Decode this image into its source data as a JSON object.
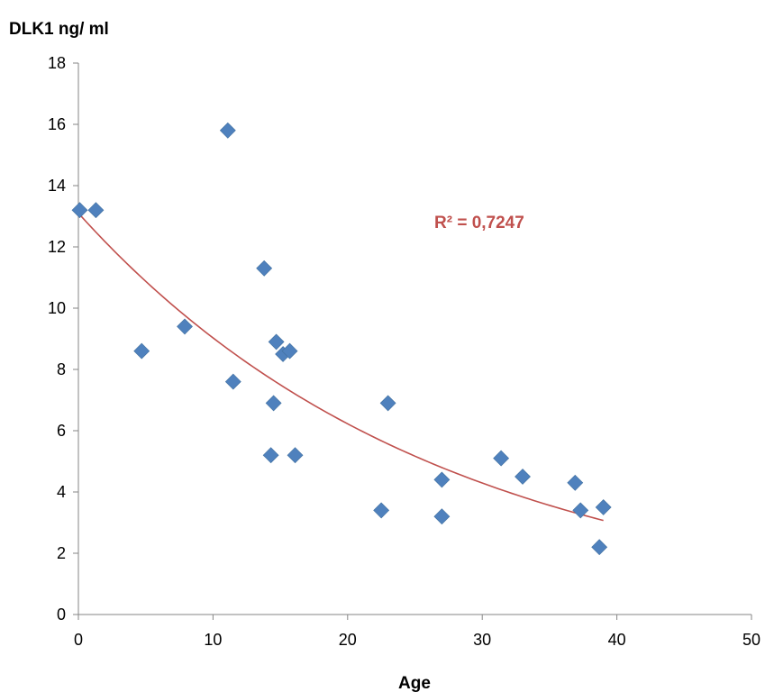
{
  "chart_data": {
    "type": "scatter",
    "title": "",
    "ylabel": "DLK1 ng/ ml",
    "xlabel": "Age",
    "xlim": [
      0,
      50
    ],
    "ylim": [
      0,
      18
    ],
    "x_ticks": [
      0,
      10,
      20,
      30,
      40,
      50
    ],
    "y_ticks": [
      0,
      2,
      4,
      6,
      8,
      10,
      12,
      14,
      16,
      18
    ],
    "grid": false,
    "legend": "none",
    "marker_color": "#4f81bd",
    "trendline_color": "#c0504d",
    "points": [
      {
        "x": 0.1,
        "y": 13.2
      },
      {
        "x": 1.3,
        "y": 13.2
      },
      {
        "x": 4.7,
        "y": 8.6
      },
      {
        "x": 7.9,
        "y": 9.4
      },
      {
        "x": 11.1,
        "y": 15.8
      },
      {
        "x": 11.5,
        "y": 7.6
      },
      {
        "x": 13.8,
        "y": 11.3
      },
      {
        "x": 14.3,
        "y": 5.2
      },
      {
        "x": 14.5,
        "y": 6.9
      },
      {
        "x": 14.7,
        "y": 8.9
      },
      {
        "x": 15.2,
        "y": 8.5
      },
      {
        "x": 15.7,
        "y": 8.6
      },
      {
        "x": 16.1,
        "y": 5.2
      },
      {
        "x": 22.5,
        "y": 3.4
      },
      {
        "x": 23.0,
        "y": 6.9
      },
      {
        "x": 27.0,
        "y": 4.4
      },
      {
        "x": 27.0,
        "y": 3.2
      },
      {
        "x": 31.4,
        "y": 5.1
      },
      {
        "x": 33.0,
        "y": 4.5
      },
      {
        "x": 36.9,
        "y": 4.3
      },
      {
        "x": 37.3,
        "y": 3.4
      },
      {
        "x": 38.7,
        "y": 2.2
      },
      {
        "x": 39.0,
        "y": 3.5
      }
    ],
    "trendline": {
      "type": "exponential",
      "a": 13.1,
      "b": -0.0372,
      "x_range": [
        0,
        39.0
      ]
    },
    "annotations": [
      {
        "text": "R² = 0,7247",
        "color": "#c0504d"
      }
    ]
  }
}
